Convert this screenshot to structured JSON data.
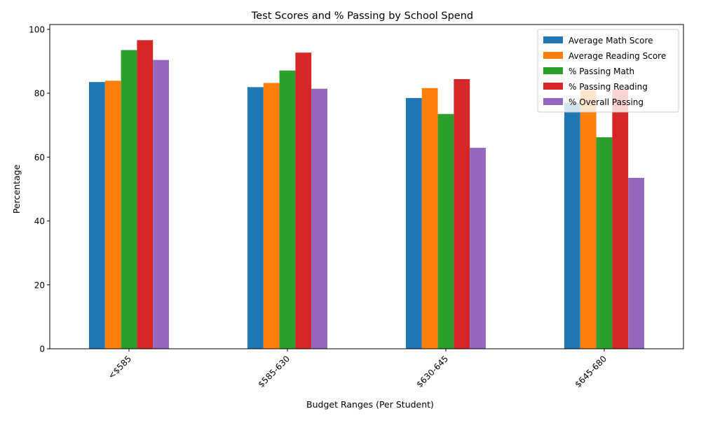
{
  "chart_data": {
    "type": "bar",
    "title": "Test Scores and % Passing by School Spend",
    "xlabel": "Budget Ranges (Per Student)",
    "ylabel": "Percentage",
    "categories": [
      "<$585",
      "$585-630",
      "$630-645",
      "$645-680"
    ],
    "ylim": [
      0,
      101.5
    ],
    "yticks": [
      0,
      20,
      40,
      60,
      80,
      100
    ],
    "grid": false,
    "legend_position": "top-right",
    "series": [
      {
        "name": "Average Math Score",
        "color": "#1f77b4",
        "values": [
          83.5,
          81.9,
          78.5,
          77.0
        ]
      },
      {
        "name": "Average Reading Score",
        "color": "#ff7f0e",
        "values": [
          83.9,
          83.2,
          81.6,
          81.0
        ]
      },
      {
        "name": "% Passing Math",
        "color": "#2ca02c",
        "values": [
          93.5,
          87.1,
          73.5,
          66.2
        ]
      },
      {
        "name": "% Passing Reading",
        "color": "#d62728",
        "values": [
          96.6,
          92.7,
          84.4,
          81.1
        ]
      },
      {
        "name": "% Overall Passing",
        "color": "#9467bd",
        "values": [
          90.4,
          81.4,
          62.9,
          53.5
        ]
      }
    ]
  }
}
